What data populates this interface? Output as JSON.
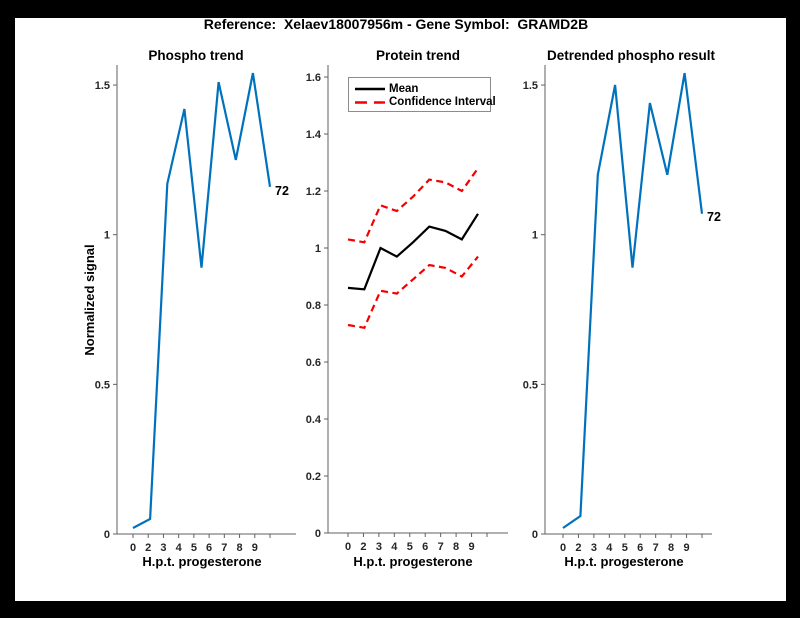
{
  "figure": {
    "title": "Reference:  Xelaev18007956m - Gene Symbol:  GRAMD2B",
    "background_color": "#000000",
    "canvas_color": "#ffffff"
  },
  "colors": {
    "phospho_blue": "#0072BD",
    "ci_red": "#F40000",
    "mean_black": "#000000",
    "axis_gray": "#616161",
    "tick_label": "#262626"
  },
  "chart_data": [
    {
      "type": "line",
      "title": "Phospho trend",
      "xlabel": "H.p.t. progesterone",
      "ylabel": "Normalized signal",
      "x_tick_labels": [
        "0",
        "2",
        "3",
        "4",
        "5",
        "6",
        "7",
        "8",
        "9"
      ],
      "y_ticks": [
        {
          "v": 0,
          "label": "0"
        },
        {
          "v": 0.5,
          "label": "0.5"
        },
        {
          "v": 1,
          "label": "1"
        },
        {
          "v": 1.5,
          "label": "1.5"
        }
      ],
      "ylim": [
        0,
        1.57
      ],
      "grid": false,
      "series": [
        {
          "name": "phospho-signal",
          "color": "#0072BD",
          "width": 2.2,
          "dash": "",
          "values": [
            0.02,
            0.05,
            1.17,
            1.42,
            0.89,
            1.51,
            1.25,
            1.54,
            1.16
          ]
        }
      ],
      "annotation": {
        "text": "72",
        "at": "last-point"
      }
    },
    {
      "type": "line",
      "title": "Protein trend",
      "xlabel": "H.p.t. progesterone",
      "ylabel": "",
      "x_tick_labels": [
        "0",
        "2",
        "3",
        "4",
        "5",
        "6",
        "7",
        "8",
        "9"
      ],
      "y_ticks": [
        {
          "v": 0,
          "label": "0"
        },
        {
          "v": 0.2,
          "label": "0.2"
        },
        {
          "v": 0.4,
          "label": "0.4"
        },
        {
          "v": 0.6,
          "label": "0.6"
        },
        {
          "v": 0.8,
          "label": "0.8"
        },
        {
          "v": 1,
          "label": "1"
        },
        {
          "v": 1.2,
          "label": "1.2"
        },
        {
          "v": 1.4,
          "label": "1.4"
        },
        {
          "v": 1.6,
          "label": "1.6"
        }
      ],
      "ylim": [
        0,
        1.64
      ],
      "grid": false,
      "legend": {
        "position": "northwest",
        "entries": [
          {
            "label": "Mean",
            "color": "#000000",
            "style": "solid"
          },
          {
            "label": "Confidence Interval",
            "color": "#F40000",
            "style": "dashed"
          }
        ]
      },
      "series": [
        {
          "name": "mean",
          "color": "#000000",
          "width": 2.2,
          "dash": "",
          "values": [
            0.86,
            0.855,
            1.0,
            0.97,
            1.02,
            1.075,
            1.06,
            1.03,
            1.12
          ]
        },
        {
          "name": "ci-upper",
          "color": "#F40000",
          "width": 2.2,
          "dash": "7 4.5",
          "values": [
            1.03,
            1.02,
            1.15,
            1.13,
            1.18,
            1.24,
            1.23,
            1.2,
            1.28
          ]
        },
        {
          "name": "ci-lower",
          "color": "#F40000",
          "width": 2.2,
          "dash": "7 4.5",
          "values": [
            0.73,
            0.72,
            0.85,
            0.84,
            0.89,
            0.94,
            0.93,
            0.9,
            0.97
          ]
        }
      ]
    },
    {
      "type": "line",
      "title": "Detrended phospho result",
      "xlabel": "H.p.t. progesterone",
      "ylabel": "",
      "x_tick_labels": [
        "0",
        "2",
        "3",
        "4",
        "5",
        "6",
        "7",
        "8",
        "9"
      ],
      "y_ticks": [
        {
          "v": 0,
          "label": "0"
        },
        {
          "v": 0.5,
          "label": "0.5"
        },
        {
          "v": 1,
          "label": "1"
        },
        {
          "v": 1.5,
          "label": "1.5"
        }
      ],
      "ylim": [
        0,
        1.57
      ],
      "grid": false,
      "series": [
        {
          "name": "detrended-phospho",
          "color": "#0072BD",
          "width": 2.2,
          "dash": "",
          "values": [
            0.02,
            0.06,
            1.2,
            1.5,
            0.89,
            1.44,
            1.2,
            1.54,
            1.07
          ]
        }
      ],
      "annotation": {
        "text": "72",
        "at": "last-point"
      }
    }
  ]
}
